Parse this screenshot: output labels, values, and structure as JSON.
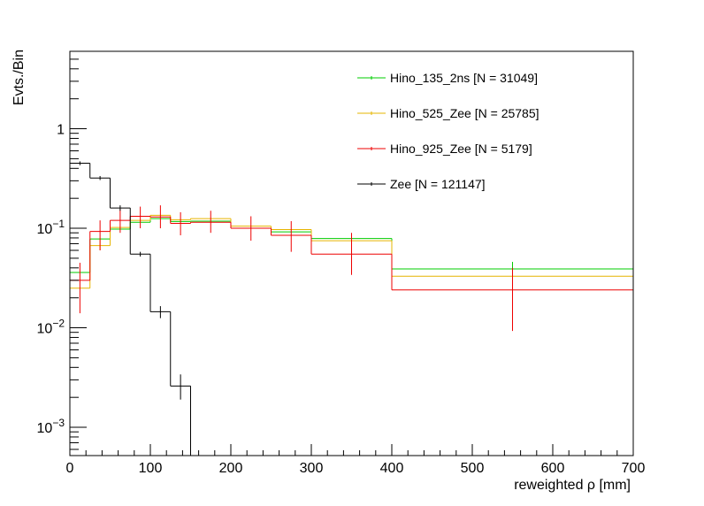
{
  "chart_data": {
    "type": "line",
    "style": "step-histogram",
    "xlabel": "reweighted  ρ [mm]",
    "ylabel": "Evts./Bin",
    "xlim": [
      0,
      700
    ],
    "ylim": [
      0.00052,
      6.0
    ],
    "yscale": "log",
    "grid": false,
    "legend_position": "top-right",
    "x_ticks": [
      "0",
      "100",
      "200",
      "300",
      "400",
      "500",
      "600",
      "700"
    ],
    "y_ticks": [
      {
        "value": 0.001,
        "base": "10",
        "exp": "−3"
      },
      {
        "value": 0.01,
        "base": "10",
        "exp": "−2"
      },
      {
        "value": 0.1,
        "base": "10",
        "exp": "−1"
      },
      {
        "value": 1,
        "base": "1",
        "exp": ""
      }
    ],
    "series": [
      {
        "name": "Hino_135_2ns [N = 31049]",
        "color": "#00cc00",
        "bins": [
          {
            "lo": 0,
            "hi": 25,
            "y": 0.036,
            "err": [
              0.0,
              0.0
            ]
          },
          {
            "lo": 25,
            "hi": 50,
            "y": 0.078,
            "err": [
              0.0,
              0.0
            ]
          },
          {
            "lo": 50,
            "hi": 75,
            "y": 0.098,
            "err": [
              0.0,
              0.0
            ]
          },
          {
            "lo": 75,
            "hi": 100,
            "y": 0.115,
            "err": [
              0.0,
              0.0
            ]
          },
          {
            "lo": 100,
            "hi": 125,
            "y": 0.125,
            "err": [
              0.0,
              0.0
            ]
          },
          {
            "lo": 125,
            "hi": 150,
            "y": 0.117,
            "err": [
              0.0,
              0.0
            ]
          },
          {
            "lo": 150,
            "hi": 200,
            "y": 0.118,
            "err": [
              0.0,
              0.0
            ]
          },
          {
            "lo": 200,
            "hi": 250,
            "y": 0.1,
            "err": [
              0.0,
              0.0
            ]
          },
          {
            "lo": 250,
            "hi": 300,
            "y": 0.092,
            "err": [
              0.0,
              0.0
            ]
          },
          {
            "lo": 300,
            "hi": 400,
            "y": 0.079,
            "err": [
              0.0,
              0.0
            ]
          },
          {
            "lo": 400,
            "hi": 700,
            "y": 0.039,
            "err": [
              0.0,
              0.046
            ]
          }
        ]
      },
      {
        "name": "Hino_525_Zee [N = 25785]",
        "color": "#e6b400",
        "bins": [
          {
            "lo": 0,
            "hi": 25,
            "y": 0.025,
            "err": [
              0.0,
              0.0
            ]
          },
          {
            "lo": 25,
            "hi": 50,
            "y": 0.067,
            "err": [
              0.06,
              0.08
            ]
          },
          {
            "lo": 50,
            "hi": 75,
            "y": 0.102,
            "err": [
              0.0,
              0.0
            ]
          },
          {
            "lo": 75,
            "hi": 100,
            "y": 0.12,
            "err": [
              0.0,
              0.0
            ]
          },
          {
            "lo": 100,
            "hi": 125,
            "y": 0.135,
            "err": [
              0.0,
              0.0
            ]
          },
          {
            "lo": 125,
            "hi": 150,
            "y": 0.122,
            "err": [
              0.0,
              0.0
            ]
          },
          {
            "lo": 150,
            "hi": 200,
            "y": 0.125,
            "err": [
              0.0,
              0.0
            ]
          },
          {
            "lo": 200,
            "hi": 250,
            "y": 0.105,
            "err": [
              0.0,
              0.0
            ]
          },
          {
            "lo": 250,
            "hi": 300,
            "y": 0.097,
            "err": [
              0.0,
              0.0
            ]
          },
          {
            "lo": 300,
            "hi": 400,
            "y": 0.075,
            "err": [
              0.0,
              0.0
            ]
          },
          {
            "lo": 400,
            "hi": 700,
            "y": 0.033,
            "err": [
              0.0,
              0.0
            ]
          }
        ]
      },
      {
        "name": "Hino_925_Zee [N = 5179]",
        "color": "#ee0000",
        "bins": [
          {
            "lo": 0,
            "hi": 25,
            "y": 0.03,
            "err": [
              0.014,
              0.045
            ]
          },
          {
            "lo": 25,
            "hi": 50,
            "y": 0.093,
            "err": [
              0.06,
              0.12
            ]
          },
          {
            "lo": 50,
            "hi": 75,
            "y": 0.12,
            "err": [
              0.09,
              0.155
            ]
          },
          {
            "lo": 75,
            "hi": 100,
            "y": 0.132,
            "err": [
              0.1,
              0.165
            ]
          },
          {
            "lo": 100,
            "hi": 125,
            "y": 0.13,
            "err": [
              0.1,
              0.17
            ]
          },
          {
            "lo": 125,
            "hi": 150,
            "y": 0.112,
            "err": [
              0.085,
              0.145
            ]
          },
          {
            "lo": 150,
            "hi": 200,
            "y": 0.115,
            "err": [
              0.09,
              0.15
            ]
          },
          {
            "lo": 200,
            "hi": 250,
            "y": 0.1,
            "err": [
              0.075,
              0.132
            ]
          },
          {
            "lo": 250,
            "hi": 300,
            "y": 0.085,
            "err": [
              0.058,
              0.118
            ]
          },
          {
            "lo": 300,
            "hi": 400,
            "y": 0.055,
            "err": [
              0.034,
              0.09
            ]
          },
          {
            "lo": 400,
            "hi": 700,
            "y": 0.024,
            "err": [
              0.0093,
              0.04
            ]
          }
        ]
      },
      {
        "name": "Zee [N = 121147]",
        "color": "#000000",
        "bins": [
          {
            "lo": 0,
            "hi": 25,
            "y": 0.45,
            "err": [
              0.43,
              0.47
            ]
          },
          {
            "lo": 25,
            "hi": 50,
            "y": 0.32,
            "err": [
              0.305,
              0.335
            ]
          },
          {
            "lo": 50,
            "hi": 75,
            "y": 0.16,
            "err": [
              0.15,
              0.17
            ]
          },
          {
            "lo": 75,
            "hi": 100,
            "y": 0.055,
            "err": [
              0.052,
              0.058
            ]
          },
          {
            "lo": 100,
            "hi": 125,
            "y": 0.0145,
            "err": [
              0.0125,
              0.0165
            ]
          },
          {
            "lo": 125,
            "hi": 150,
            "y": 0.0026,
            "err": [
              0.0019,
              0.0034
            ]
          },
          {
            "lo": 150,
            "hi": 175,
            "y": 0.0,
            "err": [
              0.0,
              0.0
            ]
          }
        ]
      }
    ]
  }
}
